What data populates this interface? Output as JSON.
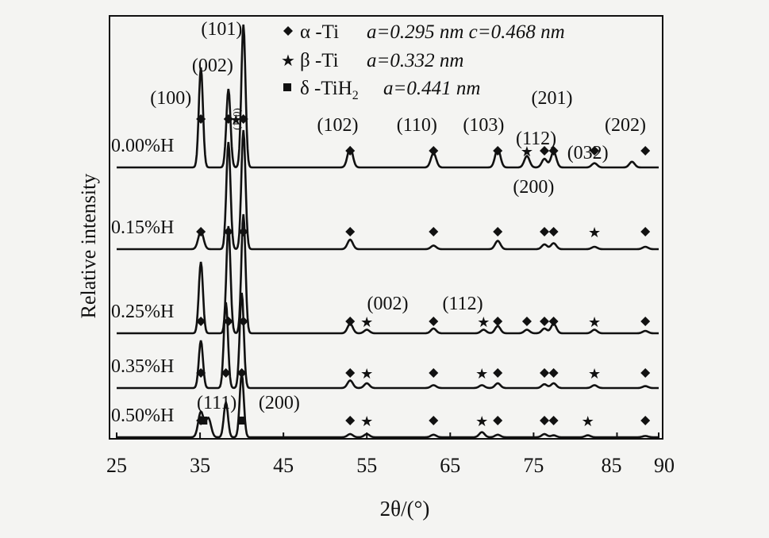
{
  "chart_data": {
    "type": "line",
    "xlabel": "2θ/(°)",
    "ylabel": "Relative intensity",
    "xlim": [
      25,
      90
    ],
    "xticks": [
      "25",
      "35",
      "45",
      "55",
      "65",
      "75",
      "85",
      "90"
    ],
    "legend": {
      "placement": "top-right",
      "items": [
        {
          "marker": "diamond",
          "phase": "α -Ti",
          "params": "a=0.295 nm c=0.468 nm"
        },
        {
          "marker": "star",
          "phase": "β -Ti",
          "params": "a=0.332 nm"
        },
        {
          "marker": "square",
          "phase": "δ -TiH",
          "sub": "2",
          "params": "a=0.441 nm"
        }
      ]
    },
    "series": [
      {
        "name": "0.00%H",
        "peaks": [
          [
            35.1,
            70
          ],
          [
            38.4,
            55
          ],
          [
            40.2,
            100
          ],
          [
            53.0,
            14
          ],
          [
            63.0,
            10
          ],
          [
            70.7,
            13
          ],
          [
            74.2,
            8
          ],
          [
            76.3,
            6
          ],
          [
            77.4,
            11
          ],
          [
            82.3,
            3
          ],
          [
            86.8,
            4
          ]
        ],
        "markers": [
          {
            "x": 35.1,
            "s": "diamond"
          },
          {
            "x": 38.4,
            "s": "diamond"
          },
          {
            "x": 39.3,
            "s": "star"
          },
          {
            "x": 40.2,
            "s": "diamond"
          },
          {
            "x": 53.0,
            "s": "diamond"
          },
          {
            "x": 63.0,
            "s": "diamond"
          },
          {
            "x": 70.7,
            "s": "diamond"
          },
          {
            "x": 74.2,
            "s": "star"
          },
          {
            "x": 76.3,
            "s": "diamond"
          },
          {
            "x": 77.4,
            "s": "diamond"
          },
          {
            "x": 82.3,
            "s": "diamond"
          },
          {
            "x": 88.4,
            "s": "diamond"
          }
        ]
      },
      {
        "name": "0.15%H",
        "peaks": [
          [
            35.1,
            15
          ],
          [
            38.4,
            90
          ],
          [
            40.2,
            100
          ],
          [
            53.0,
            8
          ],
          [
            63.0,
            3
          ],
          [
            70.7,
            7
          ],
          [
            76.3,
            4
          ],
          [
            77.4,
            5
          ],
          [
            82.3,
            2
          ],
          [
            88.4,
            2
          ]
        ],
        "markers": [
          {
            "x": 35.1,
            "s": "diamond"
          },
          {
            "x": 38.4,
            "s": "diamond"
          },
          {
            "x": 40.2,
            "s": "diamond"
          },
          {
            "x": 53.0,
            "s": "diamond"
          },
          {
            "x": 63.0,
            "s": "diamond"
          },
          {
            "x": 70.7,
            "s": "diamond"
          },
          {
            "x": 76.3,
            "s": "diamond"
          },
          {
            "x": 77.4,
            "s": "diamond"
          },
          {
            "x": 82.3,
            "s": "star"
          },
          {
            "x": 88.4,
            "s": "diamond"
          }
        ]
      },
      {
        "name": "0.25%H",
        "peaks": [
          [
            35.1,
            60
          ],
          [
            38.4,
            90
          ],
          [
            40.2,
            100
          ],
          [
            53.0,
            8
          ],
          [
            55.0,
            3
          ],
          [
            63.0,
            4
          ],
          [
            69.0,
            3
          ],
          [
            70.7,
            6
          ],
          [
            74.2,
            3
          ],
          [
            76.3,
            4
          ],
          [
            77.4,
            8
          ],
          [
            82.3,
            3
          ],
          [
            88.4,
            2
          ]
        ],
        "markers": [
          {
            "x": 35.1,
            "s": "diamond"
          },
          {
            "x": 38.4,
            "s": "diamond"
          },
          {
            "x": 40.2,
            "s": "diamond"
          },
          {
            "x": 53.0,
            "s": "diamond"
          },
          {
            "x": 55.0,
            "s": "star"
          },
          {
            "x": 63.0,
            "s": "diamond"
          },
          {
            "x": 69.0,
            "s": "star"
          },
          {
            "x": 70.7,
            "s": "diamond"
          },
          {
            "x": 74.2,
            "s": "diamond"
          },
          {
            "x": 76.3,
            "s": "diamond"
          },
          {
            "x": 77.4,
            "s": "diamond"
          },
          {
            "x": 82.3,
            "s": "star"
          },
          {
            "x": 88.4,
            "s": "diamond"
          }
        ]
      },
      {
        "name": "0.35%H",
        "peaks": [
          [
            35.1,
            50
          ],
          [
            38.1,
            90
          ],
          [
            40.0,
            100
          ],
          [
            53.0,
            8
          ],
          [
            55.0,
            5
          ],
          [
            63.0,
            3
          ],
          [
            68.8,
            3
          ],
          [
            70.7,
            5
          ],
          [
            76.3,
            4
          ],
          [
            77.4,
            5
          ],
          [
            82.3,
            3
          ],
          [
            88.4,
            2
          ]
        ],
        "markers": [
          {
            "x": 35.1,
            "s": "diamond"
          },
          {
            "x": 38.1,
            "s": "diamond"
          },
          {
            "x": 40.0,
            "s": "diamond"
          },
          {
            "x": 53.0,
            "s": "diamond"
          },
          {
            "x": 55.0,
            "s": "star"
          },
          {
            "x": 63.0,
            "s": "diamond"
          },
          {
            "x": 68.8,
            "s": "star"
          },
          {
            "x": 70.7,
            "s": "diamond"
          },
          {
            "x": 76.3,
            "s": "diamond"
          },
          {
            "x": 77.4,
            "s": "diamond"
          },
          {
            "x": 82.3,
            "s": "star"
          },
          {
            "x": 88.4,
            "s": "diamond"
          }
        ]
      },
      {
        "name": "0.50%H",
        "peaks": [
          [
            35.1,
            40
          ],
          [
            36.0,
            30
          ],
          [
            38.1,
            55
          ],
          [
            40.0,
            100
          ],
          [
            53.0,
            5
          ],
          [
            55.0,
            5
          ],
          [
            63.0,
            4
          ],
          [
            68.8,
            8
          ],
          [
            70.7,
            4
          ],
          [
            76.3,
            5
          ],
          [
            77.4,
            3
          ],
          [
            81.5,
            3
          ],
          [
            88.4,
            2
          ]
        ],
        "markers": [
          {
            "x": 35.1,
            "s": "diamond"
          },
          {
            "x": 35.4,
            "s": "square"
          },
          {
            "x": 40.0,
            "s": "square"
          },
          {
            "x": 53.0,
            "s": "diamond"
          },
          {
            "x": 55.0,
            "s": "star"
          },
          {
            "x": 63.0,
            "s": "diamond"
          },
          {
            "x": 68.8,
            "s": "star"
          },
          {
            "x": 70.7,
            "s": "diamond"
          },
          {
            "x": 76.3,
            "s": "diamond"
          },
          {
            "x": 77.4,
            "s": "diamond"
          },
          {
            "x": 81.5,
            "s": "star"
          },
          {
            "x": 88.4,
            "s": "diamond"
          }
        ]
      }
    ],
    "annotations": [
      {
        "text": "(101)",
        "x": 37.6,
        "row": 0,
        "level": "top"
      },
      {
        "text": "(002)",
        "x": 36.5,
        "row": 0,
        "level": "upper"
      },
      {
        "text": "(100)",
        "x": 31.5,
        "row": 0,
        "level": "mid"
      },
      {
        "text": "(110)",
        "x": 39.3,
        "row": 0,
        "level": "vertical"
      },
      {
        "text": "(102)",
        "x": 51.5,
        "row": 0,
        "level": "low"
      },
      {
        "text": "(110)",
        "x": 61.0,
        "row": 0,
        "level": "low"
      },
      {
        "text": "(103)",
        "x": 69.0,
        "row": 0,
        "level": "low"
      },
      {
        "text": "(201)",
        "x": 77.2,
        "row": 0,
        "level": "mid"
      },
      {
        "text": "(112)",
        "x": 75.3,
        "row": 0,
        "level": "low2"
      },
      {
        "text": "(202)",
        "x": 86.0,
        "row": 0,
        "level": "low"
      },
      {
        "text": "(032)",
        "x": 81.5,
        "row": 0,
        "level": "base"
      },
      {
        "text": "(200)",
        "x": 75.0,
        "row": 0,
        "level": "below"
      },
      {
        "text": "(002)",
        "x": 57.5,
        "row": 2,
        "level": "anno"
      },
      {
        "text": "(112)",
        "x": 66.5,
        "row": 2,
        "level": "anno"
      },
      {
        "text": "(111)",
        "x": 37.0,
        "row": 4,
        "level": "anno"
      },
      {
        "text": "(200)",
        "x": 44.5,
        "row": 4,
        "level": "anno"
      }
    ]
  }
}
